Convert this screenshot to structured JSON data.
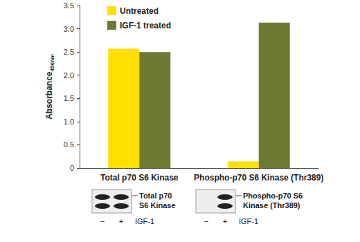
{
  "chart_data": {
    "type": "bar",
    "ylabel": {
      "text": "Absorbance",
      "subscript": "450nm"
    },
    "categories": [
      "Total p70 S6 Kinase",
      "Phospho-p70 S6 Kinase (Thr389)"
    ],
    "series": [
      {
        "name": "Untreated",
        "color": "#ffe000",
        "values": [
          2.57,
          0.14
        ]
      },
      {
        "name": "IGF-1 treated",
        "color": "#6e7a34",
        "values": [
          2.5,
          3.13
        ]
      }
    ],
    "ylim": [
      0,
      3.5
    ],
    "yticks": [
      0,
      0.5,
      {
        "value": 1,
        "label": "1.0"
      },
      1.5,
      {
        "value": 2,
        "label": "2.0"
      },
      2.5,
      {
        "value": 3,
        "label": "3.0"
      },
      3.5
    ],
    "grid": false,
    "legend": "upper left"
  },
  "blots": [
    {
      "label": [
        "Total p70",
        "S6 Kinase"
      ],
      "lanes": [
        "−",
        "+"
      ],
      "lanes_label": "IGF-1",
      "bands": [
        true,
        true
      ]
    },
    {
      "label": [
        "Phospho-p70 S6",
        "Kinase (Thr389)"
      ],
      "lanes": [
        "−",
        "+"
      ],
      "lanes_label": "IGF-1",
      "bands": [
        false,
        true
      ]
    }
  ]
}
